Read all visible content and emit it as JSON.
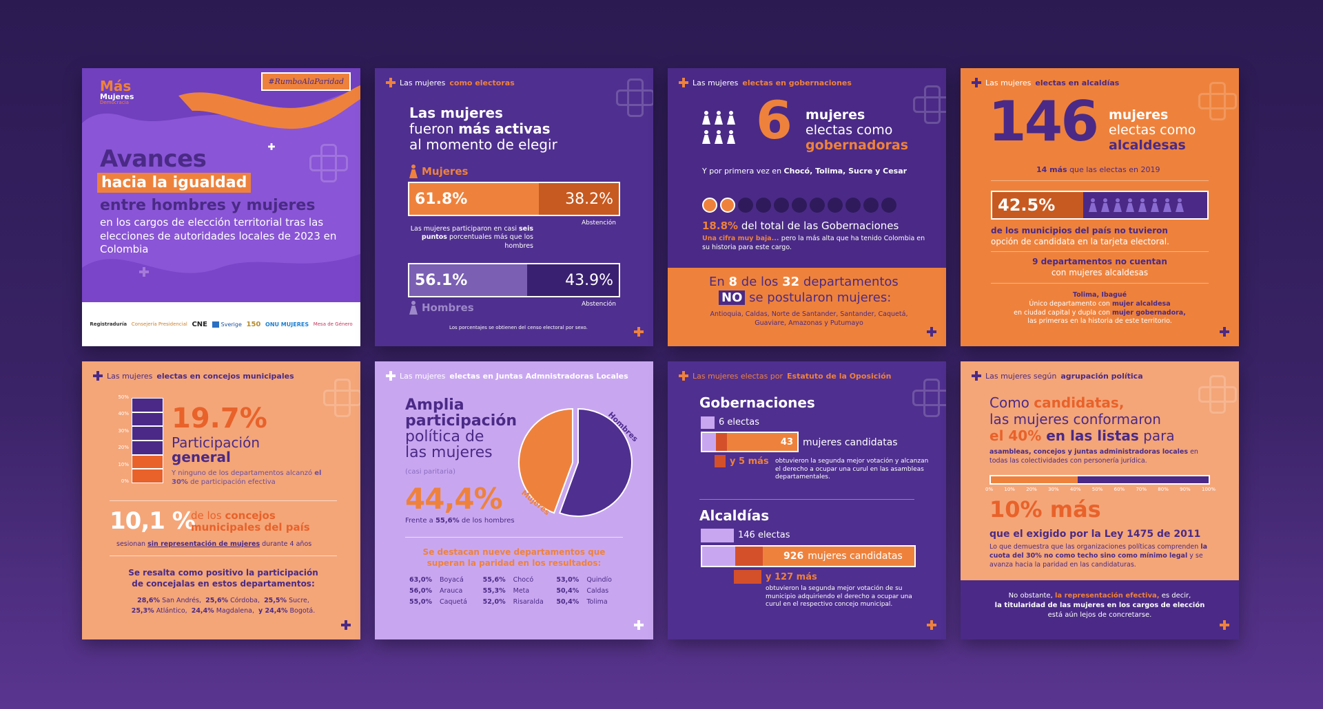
{
  "colors": {
    "orange": "#ee823c",
    "purple": "#4a2a86",
    "lavender": "#c9a7f0",
    "peach": "#f4a679"
  },
  "card1": {
    "logo_top": "Más",
    "logo_mid": "Mujeres",
    "logo_bot": "Democracia",
    "hashtag": "#RumboAlaParidad",
    "title_1": "Avances",
    "title_2": "hacia la igualdad",
    "title_3": "entre hombres y mujeres",
    "body": "en los cargos de elección territorial tras las elecciones de autoridades locales de 2023 en Colombia",
    "sponsors": [
      "Registraduría",
      "Consejería Presidencial",
      "CNE",
      "Sverige",
      "150",
      "ONU MUJERES",
      "Mesa de Género"
    ]
  },
  "card2": {
    "hdr_a": "Las mujeres ",
    "hdr_b": "como electoras",
    "t1": "Las mujeres",
    "t2a": "fueron ",
    "t2b": "más activas",
    "t3": "al momento de elegir",
    "mujeres_label": "Mujeres",
    "m_pct": "61.8%",
    "m_abs": "38.2%",
    "abs_label": "Abstención",
    "note_a": "Las mujeres participaron en casi ",
    "note_b": "seis puntos",
    "note_c": " porcentuales más que los hombres",
    "h_pct": "56.1%",
    "h_abs": "43.9%",
    "abs_label2": "Abstención",
    "hombres_label": "Hombres",
    "foot": "Los porcentajes se obtienen del censo electoral por sexo.",
    "mujeres_participation": 0.618,
    "hombres_participation": 0.561
  },
  "card3": {
    "hdr_a": "Las mujeres ",
    "hdr_b": "electas en gobernaciones",
    "big": "6",
    "l1": "mujeres",
    "l2": "electas como",
    "l3": "gobernadoras",
    "sub_a": "Y por primera vez en ",
    "sub_b": "Chocó, Tolima, Sucre y Cesar",
    "pct": "18.8%",
    "pct_rest": " del total de las Gobernaciones",
    "low_a": "Una cifra muy baja... ",
    "low_b": "pero la más alta que ha tenido Colombia en su historia para este cargo.",
    "band_a": "En ",
    "band_8": "8",
    "band_b": " de los ",
    "band_32": "32",
    "band_c": " departamentos",
    "band_no": "NO",
    "band_d": " se postularon mujeres:",
    "band_list": "Antioquia, Caldas, Norte de Santander, Santander, Caquetá, Guaviare, Amazonas y Putumayo",
    "filled_dots": 2,
    "total_dots": 11
  },
  "card4": {
    "hdr_a": "Las mujeres ",
    "hdr_b": "electas en alcaldías",
    "big": "146",
    "l1": "mujeres",
    "l2": "electas como",
    "l3": "alcaldesas",
    "sub_a": "14 más",
    "sub_b": " que las electas en 2019",
    "pct": "42.5%",
    "t1a": "de los municipios del país no tuvieron",
    "t1b": "opción de candidata en la tarjeta electoral.",
    "t2a": "9 departamentos",
    "t2b": " no cuentan",
    "t2c": "con mujeres alcaldesas",
    "t3a": "Tolima, Ibagué",
    "t3b": "Único departamento con ",
    "t3c": "mujer alcaldesa",
    "t3d": "en ciudad capital y dupla con ",
    "t3e": "mujer gobernadora,",
    "t3f": "las primeras en la historia de este territorio."
  },
  "card5": {
    "hdr_a": "Las mujeres ",
    "hdr_b": "electas en concejos municipales",
    "scale": [
      "50%",
      "40%",
      "30%",
      "20%",
      "10%",
      "0%"
    ],
    "big": "19.7%",
    "l1": "Participación",
    "l2": "general",
    "note_a": "Y ninguno de los departamentos alcanzó ",
    "note_b": "el 30%",
    "note_c": " de participación efectiva",
    "pct2": "10,1 %",
    "pct2_a": "de los ",
    "pct2_b": "concejos",
    "pct2_c": "municipales del país",
    "ses_a": "sesionan ",
    "ses_b": "sin representación de mujeres",
    "ses_c": " durante 4 años",
    "pos1": "Se resalta como positivo la participación",
    "pos2": "de concejalas en estos departamentos:",
    "list1": [
      [
        "28,6%",
        "San Andrés,"
      ],
      [
        "25,6%",
        "Córdoba,"
      ],
      [
        "25,5%",
        "Sucre,"
      ]
    ],
    "list2": [
      [
        "25,3%",
        "Atlántico,"
      ],
      [
        "24,4%",
        "Magdalena,"
      ],
      [
        "y 24,4%",
        "Bogotá."
      ]
    ],
    "general_participation": 19.7
  },
  "card6": {
    "hdr_a": "Las mujeres ",
    "hdr_b": "electas en Juntas Admnistradoras Locales",
    "t1": "Amplia",
    "t2": "participación",
    "t3": "política de",
    "t4": "las mujeres",
    "t5": "(casi paritaria)",
    "big": "44,4%",
    "vs_a": "Frente a ",
    "vs_b": "55,6%",
    "vs_c": " de los hombres",
    "pie_h": "Hombres",
    "pie_m": "Mujeres",
    "dest1": "Se destacan nueve departamentos que",
    "dest2": "superan la paridad en los resultados:",
    "deps": [
      [
        "63,0%",
        "Boyacá"
      ],
      [
        "55,6%",
        "Chocó"
      ],
      [
        "53,0%",
        "Quindío"
      ],
      [
        "56,0%",
        "Arauca"
      ],
      [
        "55,3%",
        "Meta"
      ],
      [
        "50,4%",
        "Caldas"
      ],
      [
        "55,0%",
        "Caquetá"
      ],
      [
        "52,0%",
        "Risaralda"
      ],
      [
        "50,4%",
        "Tolima"
      ]
    ],
    "women_share": 0.444
  },
  "card7": {
    "hdr_a": "Las mujeres electas por ",
    "hdr_b": "Estatuto de la Oposición",
    "g_title": "Gobernaciones",
    "g_elect": "6 electas",
    "g_num": "43",
    "g_cand": "mujeres candidatas",
    "g_mas": "y 5 más",
    "g_desc": "obtuvieron la segunda mejor votación y alcanzan el derecho a ocupar una curul en las asambleas departamentales.",
    "a_title": "Alcaldías",
    "a_elect": "146 electas",
    "a_num": "926",
    "a_cand": "mujeres candidatas",
    "a_mas": "y 127 más",
    "a_desc": "obtuvieron la segunda mejor votación de su municipio adquiriendo el derecho a ocupar una curul en el respectivo concejo municipal."
  },
  "card8": {
    "hdr_a": "Las mujeres según ",
    "hdr_b": "agrupación política",
    "t1a": "Como ",
    "t1b": "candidatas,",
    "t2": "las mujeres conformaron",
    "t3a": "el 40%",
    "t3b": " en las listas",
    "t3c": " para",
    "sm_a": "asambleas, concejos y juntas administradoras locales",
    "sm_b": " en todas las colectividades con personería jurídica.",
    "ticks": [
      "0%",
      "10%",
      "20%",
      "30%",
      "40%",
      "50%",
      "60%",
      "70%",
      "80%",
      "90%",
      "100%"
    ],
    "big": "10% más",
    "big_sub": "que el exigido por la Ley 1475 de 2011",
    "law_a": "Lo que demuestra que las organizaciones políticas comprenden ",
    "law_b": "la cuota del 30% no como techo sino como mínimo legal",
    "law_c": " y se avanza hacia la paridad en las candidaturas.",
    "band_a": "No obstante, ",
    "band_b": "la representación efectiva,",
    "band_c": " es decir,",
    "band_d": "la titularidad de las mujeres en los cargos de elección",
    "band_e": "está aún lejos de concretarse.",
    "candidate_share": 0.4
  }
}
